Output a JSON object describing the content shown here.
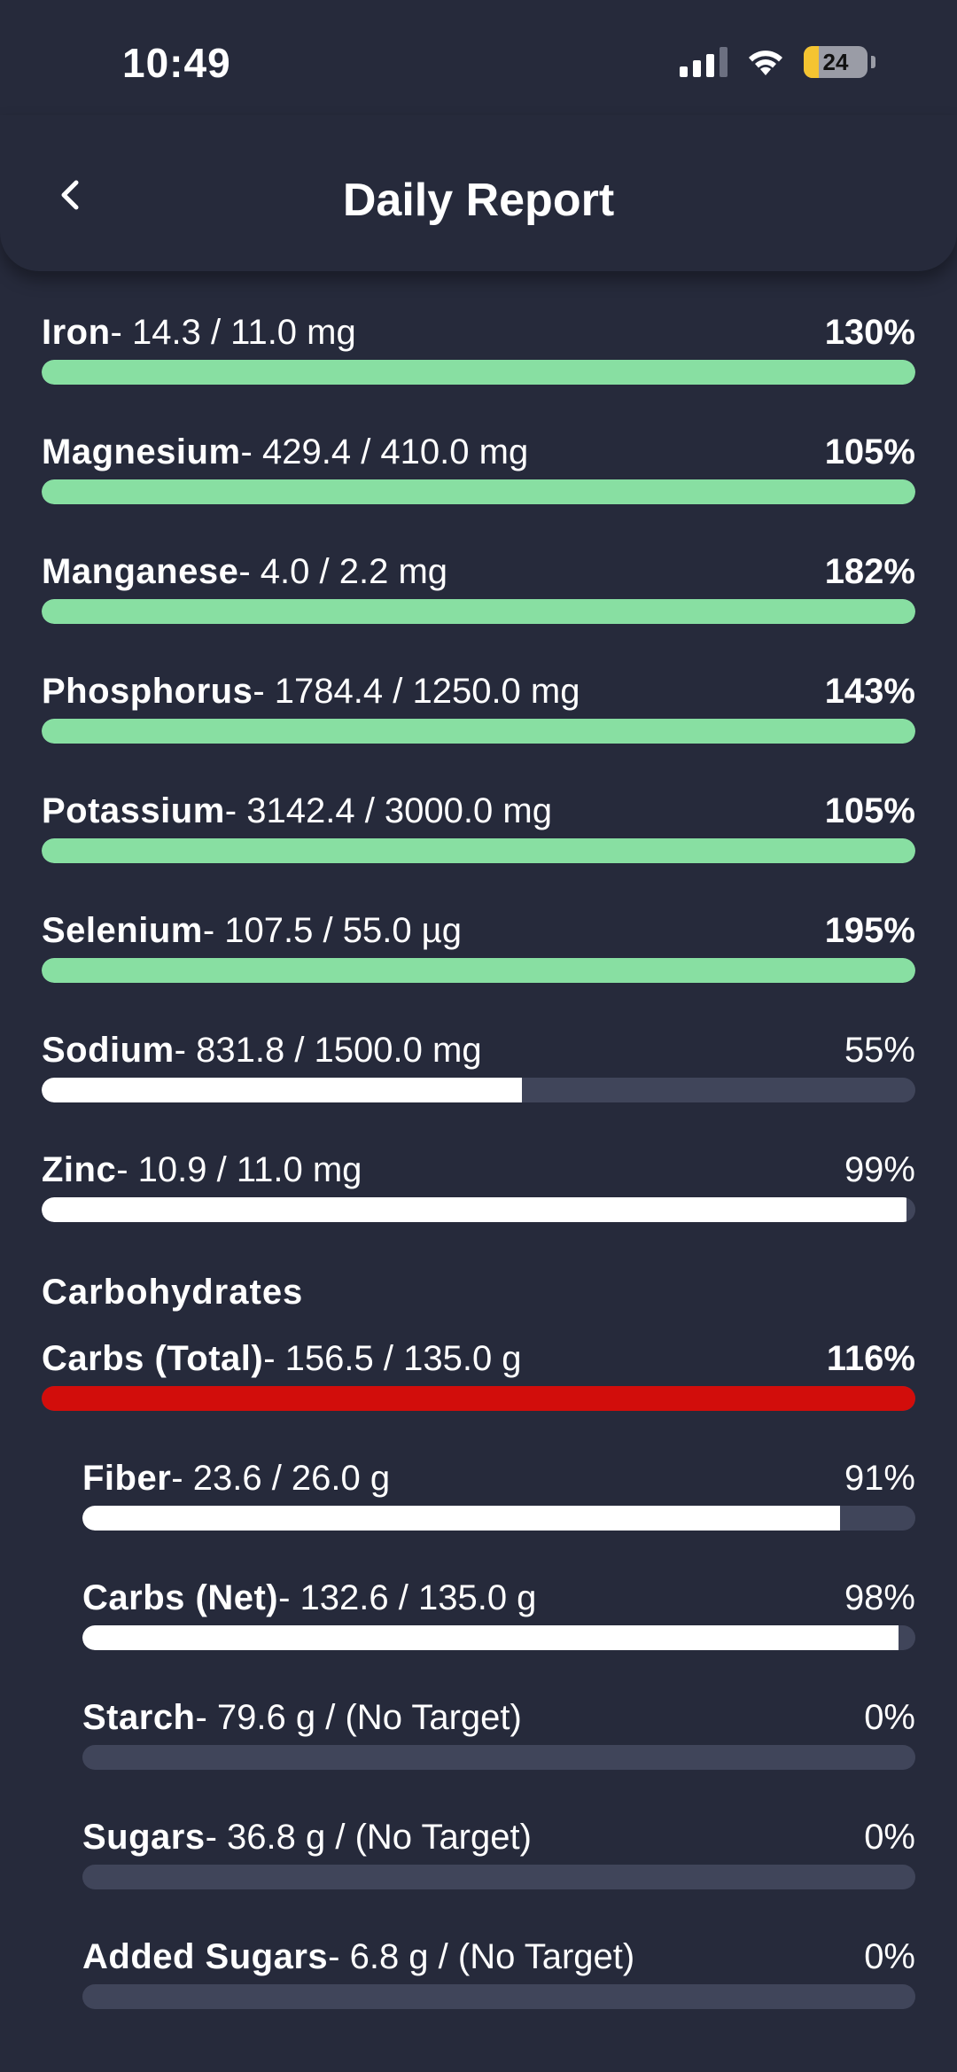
{
  "status_bar": {
    "time": "10:49",
    "battery_level": "24"
  },
  "header": {
    "title": "Daily Report"
  },
  "colors": {
    "met": "#88dfa2",
    "under": "#ffffff",
    "over": "#d20d0b",
    "track": "#40455a"
  },
  "minerals": [
    {
      "name": "Iron",
      "amount": "- 14.3 / 11.0 mg",
      "percent": "130%",
      "progress": 1.0,
      "status": "met"
    },
    {
      "name": "Magnesium",
      "amount": "- 429.4 / 410.0 mg",
      "percent": "105%",
      "progress": 1.0,
      "status": "met"
    },
    {
      "name": "Manganese",
      "amount": "- 4.0 / 2.2 mg",
      "percent": "182%",
      "progress": 1.0,
      "status": "met"
    },
    {
      "name": "Phosphorus",
      "amount": "- 1784.4 / 1250.0 mg",
      "percent": "143%",
      "progress": 1.0,
      "status": "met"
    },
    {
      "name": "Potassium",
      "amount": "- 3142.4 / 3000.0 mg",
      "percent": "105%",
      "progress": 1.0,
      "status": "met"
    },
    {
      "name": "Selenium",
      "amount": "- 107.5 / 55.0 µg",
      "percent": "195%",
      "progress": 1.0,
      "status": "met"
    },
    {
      "name": "Sodium",
      "amount": "- 831.8 / 1500.0 mg",
      "percent": "55%",
      "progress": 0.55,
      "status": "under"
    },
    {
      "name": "Zinc",
      "amount": "- 10.9 / 11.0 mg",
      "percent": "99%",
      "progress": 0.99,
      "status": "under"
    }
  ],
  "carbohydrates": {
    "section_title": "Carbohydrates",
    "total": {
      "name": "Carbs (Total)",
      "amount": "- 156.5 / 135.0 g",
      "percent": "116%",
      "progress": 1.0,
      "status": "over"
    },
    "items": [
      {
        "name": "Fiber",
        "amount": "- 23.6 / 26.0 g",
        "percent": "91%",
        "progress": 0.91,
        "status": "under"
      },
      {
        "name": "Carbs (Net)",
        "amount": "- 132.6 / 135.0 g",
        "percent": "98%",
        "progress": 0.98,
        "status": "under"
      },
      {
        "name": "Starch",
        "amount": "- 79.6 g / (No Target)",
        "percent": "0%",
        "progress": 0,
        "status": "under"
      },
      {
        "name": "Sugars",
        "amount": "- 36.8 g / (No Target)",
        "percent": "0%",
        "progress": 0,
        "status": "under"
      },
      {
        "name": "Added Sugars",
        "amount": "- 6.8 g / (No Target)",
        "percent": "0%",
        "progress": 0,
        "status": "under"
      }
    ]
  }
}
